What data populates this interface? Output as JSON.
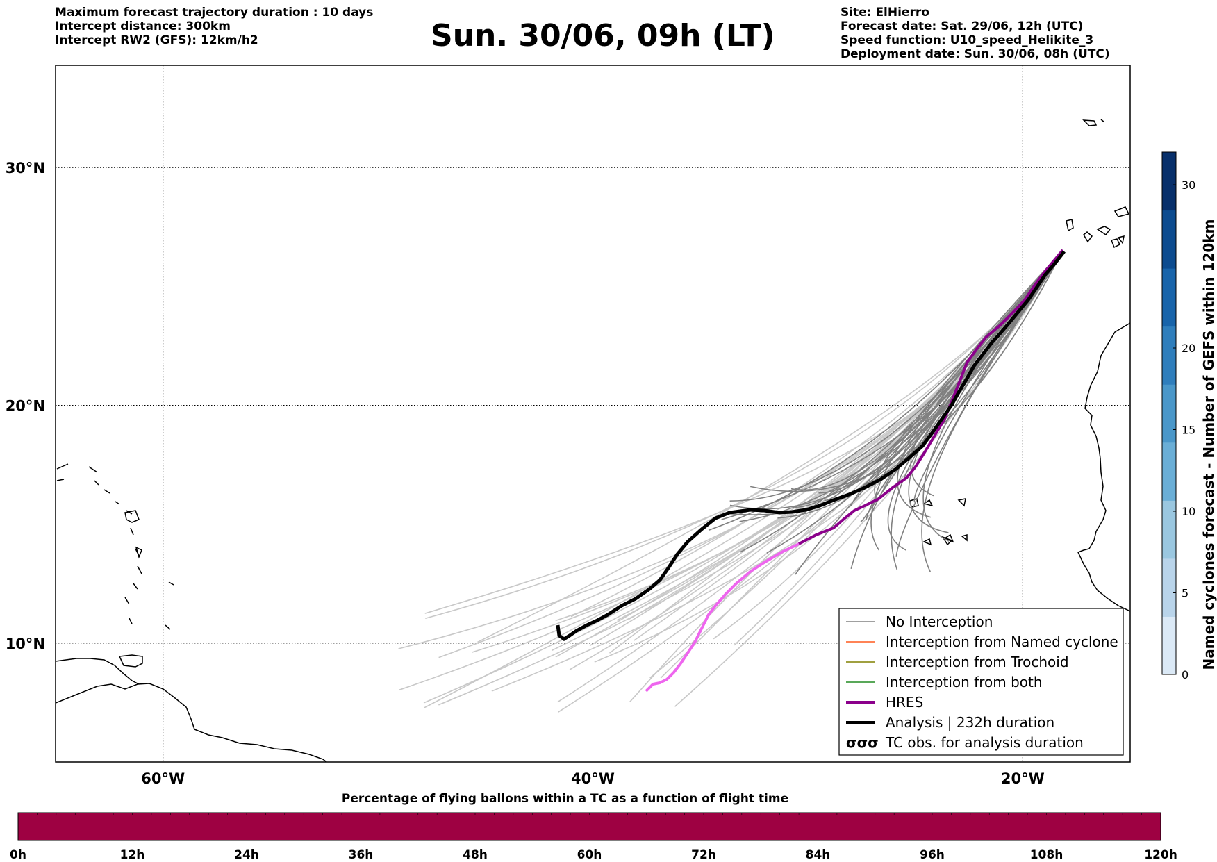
{
  "header": {
    "left_lines": [
      "Maximum forecast trajectory duration : 10 days",
      "Intercept distance: 300km",
      "Intercept RW2 (GFS):  12km/h2"
    ],
    "title": "Sun. 30/06, 09h (LT)",
    "right_lines": [
      "Site: ElHierro",
      "Forecast date: Sat. 29/06, 12h (UTC)",
      "Speed function: U10_speed_Helikite_3",
      "Deployment date: Sun. 30/06, 08h (UTC)"
    ]
  },
  "map": {
    "lon_range": [
      -65,
      -15
    ],
    "lat_range": [
      5,
      34.3
    ],
    "lat_labels": [
      {
        "lat": 30,
        "text": "30°N"
      },
      {
        "lat": 20,
        "text": "20°N"
      },
      {
        "lat": 10,
        "text": "10°N"
      }
    ],
    "lon_labels": [
      {
        "lon": -60,
        "text": "60°W"
      },
      {
        "lon": -40,
        "text": "40°W"
      },
      {
        "lon": -20,
        "text": "20°W"
      }
    ]
  },
  "legend": {
    "items": [
      {
        "label": "No Interception",
        "color": "#808080",
        "kind": "thin"
      },
      {
        "label": "Interception from Named cyclone",
        "color": "#ff5a1f",
        "kind": "thin"
      },
      {
        "label": "Interception from Trochoid",
        "color": "#808000",
        "kind": "thin"
      },
      {
        "label": "Interception from both",
        "color": "#228b22",
        "kind": "thin"
      },
      {
        "label": "HRES",
        "color": "#8b008b",
        "kind": "thick"
      },
      {
        "label": "Analysis | 232h duration",
        "color": "#000000",
        "kind": "thick"
      },
      {
        "label": "TC obs. for analysis duration",
        "color": "#000000",
        "kind": "symbol"
      }
    ]
  },
  "colorbar": {
    "label": "Named cyclones forecast - Number of GEFS within 120km",
    "ticks": [
      0,
      5,
      10,
      15,
      20,
      30
    ],
    "range": [
      0,
      32
    ],
    "colors": [
      "#dbe9f6",
      "#b9d4ea",
      "#9ac7e0",
      "#6aaed6",
      "#4a97c9",
      "#2f7ebc",
      "#1864aa",
      "#0c4b8f",
      "#08306b"
    ]
  },
  "bottom_bar": {
    "title": "Percentage of flying ballons within a TC as a function of flight time",
    "ticks": [
      "0h",
      "12h",
      "24h",
      "36h",
      "48h",
      "60h",
      "72h",
      "84h",
      "96h",
      "108h",
      "120h"
    ],
    "fill_color": "#9e0142"
  },
  "colors": {
    "hres": "#8b008b",
    "hres_tail": "#ee66ee",
    "analysis": "#000000",
    "no_interception": "#808080",
    "no_interception_light": "#c8c8c8"
  }
}
